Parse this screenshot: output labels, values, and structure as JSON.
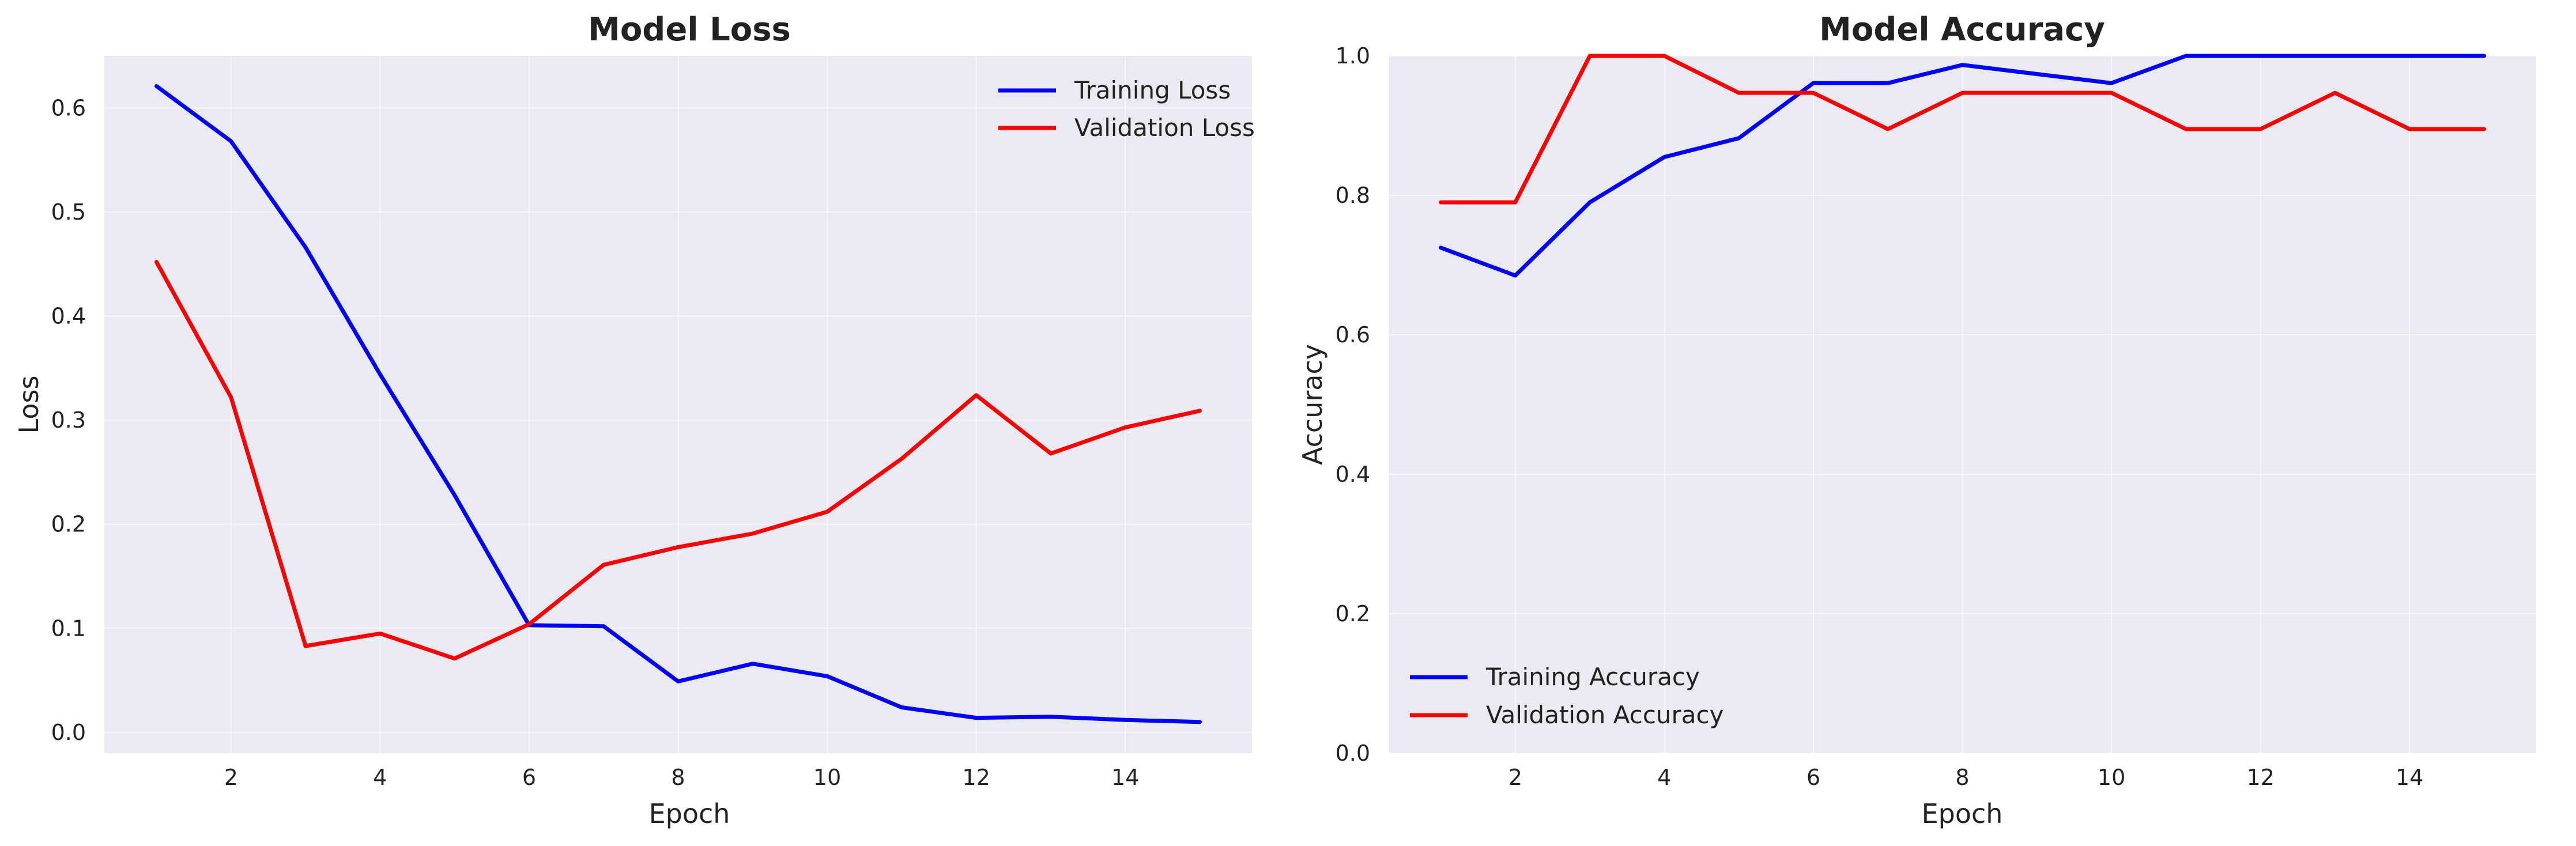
{
  "chart_data": [
    {
      "type": "line",
      "title": "Model Loss",
      "xlabel": "Epoch",
      "ylabel": "Loss",
      "xlim": [
        0.3,
        15.7
      ],
      "ylim": [
        -0.02,
        0.65
      ],
      "xticks": [
        2,
        4,
        6,
        8,
        10,
        12,
        14
      ],
      "yticks": [
        0.0,
        0.1,
        0.2,
        0.3,
        0.4,
        0.5,
        0.6
      ],
      "ytick_labels": [
        "0.0",
        "0.1",
        "0.2",
        "0.3",
        "0.4",
        "0.5",
        "0.6"
      ],
      "grid": true,
      "legend_position": "upper-right",
      "x": [
        1,
        2,
        3,
        4,
        5,
        6,
        7,
        8,
        9,
        10,
        11,
        12,
        13,
        14,
        15
      ],
      "series": [
        {
          "name": "Training Loss",
          "color": "#0000ff",
          "values": [
            0.621,
            0.568,
            0.466,
            0.344,
            0.228,
            0.103,
            0.102,
            0.049,
            0.066,
            0.054,
            0.024,
            0.014,
            0.015,
            0.012,
            0.01
          ]
        },
        {
          "name": "Validation Loss",
          "color": "#ff0000",
          "values": [
            0.452,
            0.322,
            0.083,
            0.095,
            0.071,
            0.104,
            0.161,
            0.178,
            0.191,
            0.212,
            0.263,
            0.324,
            0.268,
            0.293,
            0.309
          ]
        }
      ]
    },
    {
      "type": "line",
      "title": "Model Accuracy",
      "xlabel": "Epoch",
      "ylabel": "Accuracy",
      "xlim": [
        0.3,
        15.7
      ],
      "ylim": [
        0.0,
        1.0
      ],
      "xticks": [
        2,
        4,
        6,
        8,
        10,
        12,
        14
      ],
      "yticks": [
        0.0,
        0.2,
        0.4,
        0.6,
        0.8,
        1.0
      ],
      "ytick_labels": [
        "0.0",
        "0.2",
        "0.4",
        "0.6",
        "0.8",
        "1.0"
      ],
      "grid": true,
      "legend_position": "lower-left",
      "x": [
        1,
        2,
        3,
        4,
        5,
        6,
        7,
        8,
        9,
        10,
        11,
        12,
        13,
        14,
        15
      ],
      "series": [
        {
          "name": "Training Accuracy",
          "color": "#0000ff",
          "values": [
            0.725,
            0.685,
            0.79,
            0.855,
            0.882,
            0.961,
            0.961,
            0.987,
            0.974,
            0.961,
            1.0,
            1.0,
            1.0,
            1.0,
            1.0
          ]
        },
        {
          "name": "Validation Accuracy",
          "color": "#ff0000",
          "values": [
            0.79,
            0.79,
            1.0,
            1.0,
            0.947,
            0.947,
            0.895,
            0.947,
            0.947,
            0.947,
            0.895,
            0.895,
            0.947,
            0.895,
            0.895
          ]
        }
      ]
    }
  ]
}
